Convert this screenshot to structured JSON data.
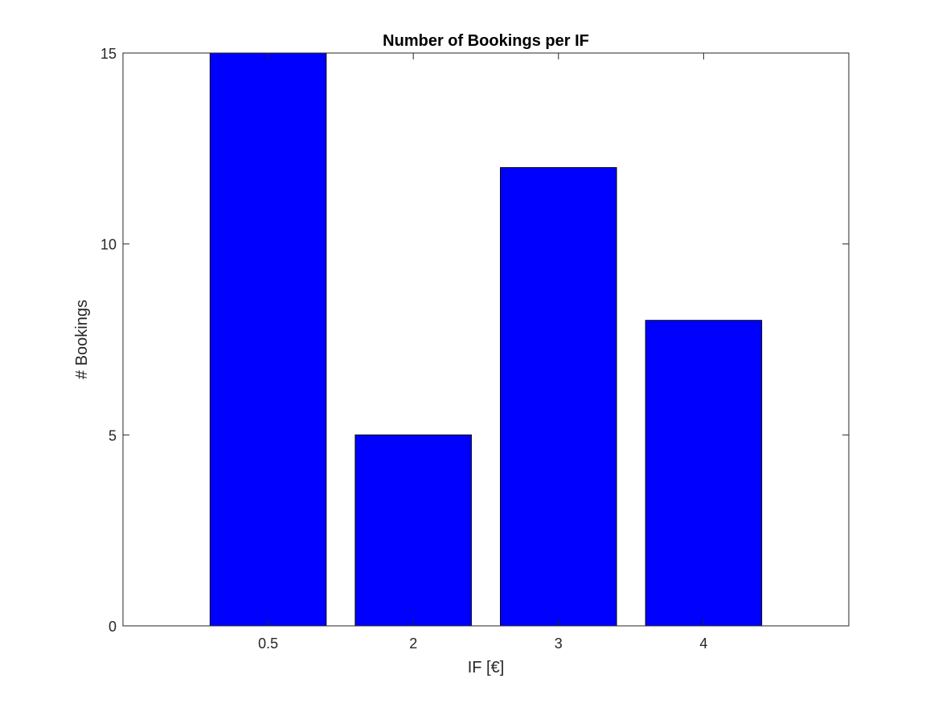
{
  "chart_data": {
    "type": "bar",
    "title": "Number of Bookings per IF",
    "xlabel": "IF [€]",
    "ylabel": "# Bookings",
    "categories": [
      "0.5",
      "2",
      "3",
      "4"
    ],
    "values": [
      15,
      5,
      12,
      8
    ],
    "ylim": [
      0,
      15
    ],
    "yticks": [
      0,
      5,
      10,
      15
    ],
    "grid": false,
    "bar_color": "#0000ff",
    "edge_color": "#000000"
  }
}
